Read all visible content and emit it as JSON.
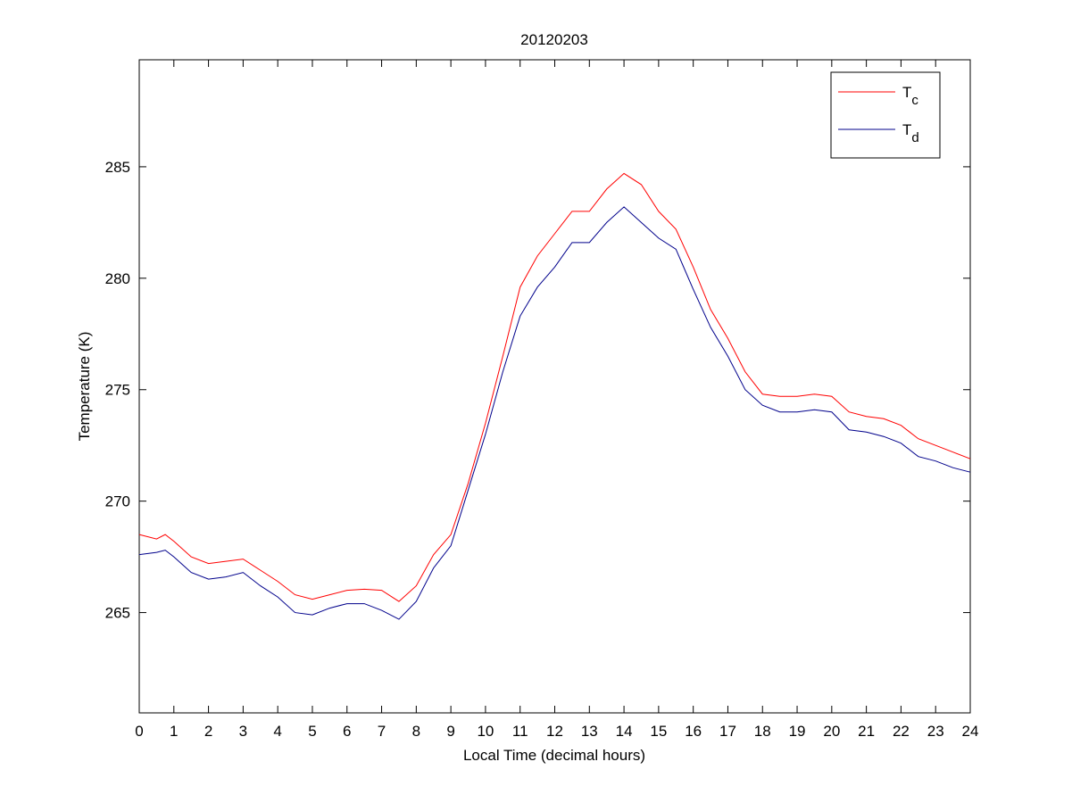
{
  "chart_data": {
    "type": "line",
    "title": "20120203",
    "xlabel": "Local Time (decimal hours)",
    "ylabel": "Temperature (K)",
    "x": [
      0,
      0.5,
      0.75,
      1,
      1.5,
      2,
      2.5,
      3,
      3.5,
      4,
      4.5,
      5,
      5.5,
      6,
      6.5,
      7,
      7.5,
      8,
      8.5,
      9,
      9.5,
      10,
      10.5,
      11,
      11.5,
      12,
      12.5,
      13,
      13.5,
      14,
      14.5,
      15,
      15.5,
      16,
      16.5,
      17,
      17.5,
      18,
      18.5,
      19,
      19.5,
      20,
      20.5,
      21,
      21.5,
      22,
      22.5,
      23,
      23.5,
      24
    ],
    "series": [
      {
        "name": "Tc",
        "color": "#ff0000",
        "values": [
          268.5,
          268.3,
          268.5,
          268.2,
          267.5,
          267.2,
          267.3,
          267.4,
          266.9,
          266.4,
          265.8,
          265.6,
          265.8,
          266.0,
          266.05,
          266.0,
          265.5,
          266.2,
          267.6,
          268.5,
          270.8,
          273.5,
          276.5,
          279.6,
          281.0,
          282.0,
          283.0,
          283.0,
          284.0,
          284.7,
          284.2,
          283.0,
          282.2,
          280.5,
          278.6,
          277.3,
          275.8,
          274.8,
          274.7,
          274.7,
          274.8,
          274.7,
          274.0,
          273.8,
          273.7,
          273.4,
          272.8,
          272.5,
          272.2,
          271.9
        ]
      },
      {
        "name": "Td",
        "color": "#00008b",
        "values": [
          267.6,
          267.7,
          267.8,
          267.5,
          266.8,
          266.5,
          266.6,
          266.8,
          266.2,
          265.7,
          265.0,
          264.9,
          265.2,
          265.4,
          265.4,
          265.1,
          264.7,
          265.5,
          267.0,
          268.0,
          270.5,
          273.0,
          275.8,
          278.3,
          279.6,
          280.5,
          281.6,
          281.6,
          282.5,
          283.2,
          282.5,
          281.8,
          281.3,
          279.5,
          277.8,
          276.5,
          275.0,
          274.3,
          274.0,
          274.0,
          274.1,
          274.0,
          273.2,
          273.1,
          272.9,
          272.6,
          272.0,
          271.8,
          271.5,
          271.3
        ]
      }
    ],
    "xlim": [
      0,
      24
    ],
    "xticks": [
      0,
      1,
      2,
      3,
      4,
      5,
      6,
      7,
      8,
      9,
      10,
      11,
      12,
      13,
      14,
      15,
      16,
      17,
      18,
      19,
      20,
      21,
      22,
      23,
      24
    ],
    "ylim": [
      260.5,
      289.8
    ],
    "yticks": [
      265,
      270,
      275,
      280,
      285
    ],
    "grid": false,
    "legend": "northeast"
  }
}
